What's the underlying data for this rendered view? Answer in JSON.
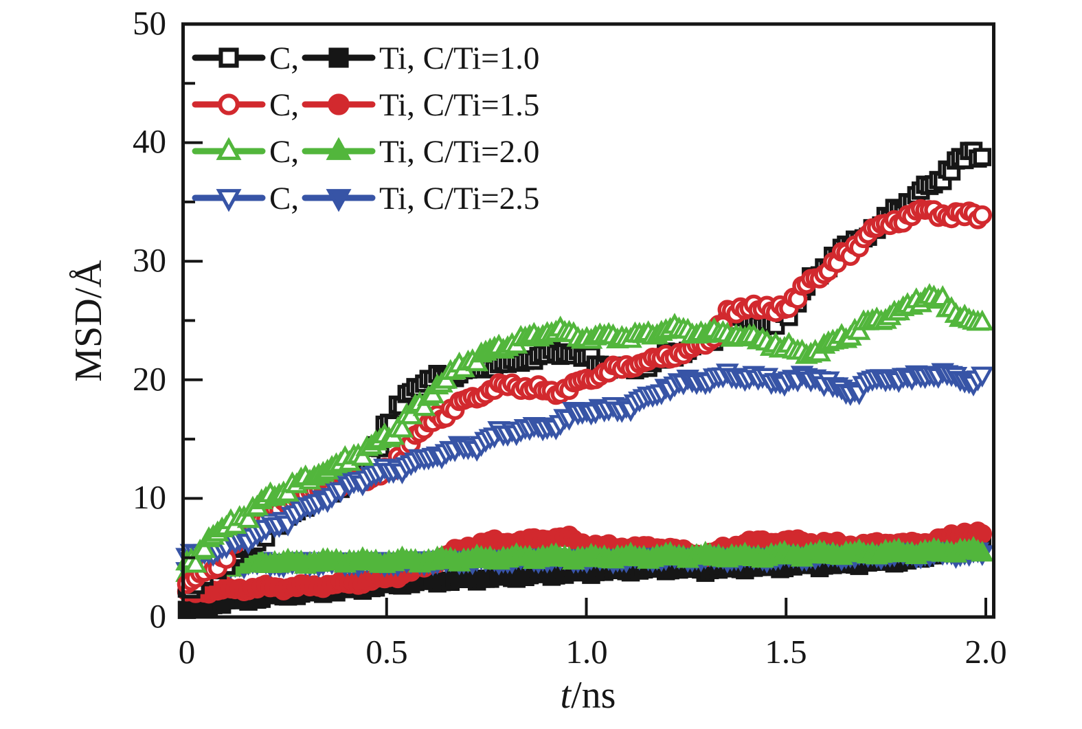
{
  "chart_data": {
    "type": "scatter",
    "title": "",
    "xlabel": "t/ns",
    "xlabel_italic": "t",
    "xlabel_rest": "/ns",
    "ylabel": "MSD/Å",
    "xlim": [
      0,
      2.0
    ],
    "ylim": [
      0,
      50
    ],
    "grid": false,
    "legend_position": "top-left-inside",
    "x_tick_values": [
      0,
      0.5,
      1.0,
      1.5,
      2.0
    ],
    "x_tick_labels": [
      "0",
      "0.5",
      "1.0",
      "1.5",
      "2.0"
    ],
    "y_tick_values": [
      0,
      10,
      20,
      30,
      40,
      50
    ],
    "y_tick_labels": [
      "0",
      "10",
      "20",
      "30",
      "40",
      "50"
    ],
    "y_minor_tick_values": [
      5,
      15,
      25,
      35,
      45
    ],
    "x": [
      0,
      0.05,
      0.1,
      0.15,
      0.2,
      0.25,
      0.3,
      0.35,
      0.4,
      0.45,
      0.5,
      0.55,
      0.6,
      0.65,
      0.7,
      0.75,
      0.8,
      0.85,
      0.9,
      0.95,
      1.0,
      1.05,
      1.1,
      1.15,
      1.2,
      1.25,
      1.3,
      1.35,
      1.4,
      1.45,
      1.5,
      1.55,
      1.6,
      1.65,
      1.7,
      1.75,
      1.8,
      1.85,
      1.9,
      1.95,
      2.0
    ],
    "series": [
      {
        "id": "C_1.0",
        "element": "C",
        "ratio": "1.0",
        "color": "#161616",
        "marker": "square",
        "fill": "open",
        "values": [
          2.6,
          4.0,
          5.1,
          6.2,
          7.5,
          8.7,
          9.8,
          10.8,
          11.8,
          13.4,
          16.6,
          19.2,
          20.0,
          20.4,
          20.8,
          21.2,
          21.4,
          21.8,
          22.2,
          22.4,
          21.6,
          21.0,
          20.9,
          21.3,
          22.2,
          22.6,
          23.4,
          24.8,
          25.4,
          24.3,
          26.3,
          28.2,
          30.2,
          31.4,
          32.4,
          33.8,
          35.2,
          36.4,
          37.8,
          39.2,
          38.7
        ]
      },
      {
        "id": "Ti_1.0",
        "element": "Ti",
        "ratio": "1.0",
        "color": "#161616",
        "marker": "square",
        "fill": "filled",
        "values": [
          0.6,
          1.0,
          1.3,
          1.5,
          1.7,
          1.9,
          2.0,
          2.2,
          2.3,
          2.5,
          2.7,
          2.9,
          3.0,
          3.1,
          3.2,
          3.3,
          3.4,
          3.5,
          3.6,
          3.7,
          3.8,
          3.9,
          4.0,
          4.0,
          4.1,
          4.1,
          4.0,
          4.1,
          4.2,
          4.2,
          4.3,
          4.4,
          4.4,
          4.5,
          4.6,
          4.7,
          4.8,
          5.0,
          6.2,
          6.9,
          6.4
        ]
      },
      {
        "id": "C_1.5",
        "element": "C",
        "ratio": "1.5",
        "color": "#d2292e",
        "marker": "circle",
        "fill": "open",
        "values": [
          3.0,
          4.2,
          5.8,
          7.5,
          8.8,
          9.9,
          10.5,
          11.0,
          11.4,
          11.8,
          12.4,
          14.8,
          16.4,
          17.6,
          18.4,
          19.2,
          19.6,
          19.3,
          18.9,
          19.4,
          20.2,
          20.8,
          21.2,
          21.6,
          22.1,
          22.4,
          23.6,
          25.6,
          26.4,
          25.6,
          26.6,
          28.3,
          29.6,
          30.8,
          32.6,
          33.2,
          33.9,
          34.4,
          33.6,
          34.2,
          33.5
        ]
      },
      {
        "id": "Ti_1.5",
        "element": "Ti",
        "ratio": "1.5",
        "color": "#d2292e",
        "marker": "circle",
        "fill": "filled",
        "values": [
          1.9,
          2.2,
          2.3,
          2.4,
          2.5,
          2.5,
          2.6,
          2.7,
          2.8,
          3.0,
          3.3,
          3.7,
          4.3,
          5.2,
          5.9,
          6.3,
          6.3,
          6.4,
          6.6,
          6.7,
          6.1,
          5.9,
          5.9,
          5.8,
          5.9,
          5.4,
          5.2,
          5.8,
          6.3,
          6.3,
          6.4,
          6.3,
          6.2,
          6.1,
          6.0,
          6.3,
          6.1,
          6.3,
          6.6,
          7.2,
          6.9
        ]
      },
      {
        "id": "C_2.0",
        "element": "C",
        "ratio": "2.0",
        "color": "#52b63c",
        "marker": "triangle-up",
        "fill": "open",
        "values": [
          4.5,
          6.8,
          7.8,
          8.9,
          10.2,
          10.8,
          11.8,
          12.5,
          13.4,
          14.3,
          15.4,
          16.9,
          18.8,
          20.6,
          21.6,
          22.4,
          23.0,
          23.5,
          24.1,
          23.8,
          23.4,
          23.7,
          23.5,
          23.8,
          24.3,
          24.0,
          23.9,
          23.8,
          23.5,
          23.1,
          22.4,
          22.2,
          23.0,
          23.9,
          24.8,
          25.4,
          26.3,
          27.1,
          25.9,
          25.0,
          24.2
        ]
      },
      {
        "id": "Ti_2.0",
        "element": "Ti",
        "ratio": "2.0",
        "color": "#52b63c",
        "marker": "triangle-up",
        "fill": "filled",
        "values": [
          3.6,
          4.1,
          4.3,
          4.5,
          4.6,
          4.5,
          4.6,
          4.6,
          4.7,
          4.6,
          4.6,
          4.7,
          4.7,
          4.8,
          4.8,
          4.9,
          4.9,
          5.0,
          5.0,
          5.0,
          4.9,
          5.0,
          5.0,
          5.0,
          5.1,
          5.1,
          5.1,
          5.1,
          5.0,
          5.1,
          5.2,
          5.2,
          5.3,
          5.3,
          5.3,
          5.4,
          5.4,
          5.4,
          5.5,
          5.5,
          5.5
        ]
      },
      {
        "id": "C_2.5",
        "element": "C",
        "ratio": "2.5",
        "color": "#3754a6",
        "marker": "triangle-down",
        "fill": "open",
        "values": [
          5.2,
          5.6,
          6.2,
          6.9,
          7.6,
          8.5,
          9.4,
          10.4,
          11.3,
          12.0,
          12.4,
          12.9,
          13.6,
          14.1,
          14.4,
          15.1,
          15.8,
          15.9,
          16.1,
          17.0,
          17.6,
          17.4,
          17.9,
          18.6,
          19.6,
          19.9,
          20.1,
          20.4,
          20.3,
          20.0,
          19.9,
          20.4,
          19.6,
          18.9,
          19.9,
          20.3,
          20.1,
          20.6,
          20.4,
          19.9,
          20.4
        ]
      },
      {
        "id": "Ti_2.5",
        "element": "Ti",
        "ratio": "2.5",
        "color": "#3754a6",
        "marker": "triangle-down",
        "fill": "filled",
        "values": [
          3.7,
          4.2,
          4.4,
          4.5,
          4.6,
          4.5,
          4.6,
          4.6,
          4.6,
          4.6,
          4.6,
          4.6,
          4.7,
          4.7,
          4.8,
          4.8,
          4.8,
          4.9,
          4.9,
          4.9,
          4.9,
          4.9,
          4.9,
          5.0,
          5.0,
          5.0,
          5.0,
          5.0,
          5.0,
          5.0,
          5.1,
          5.1,
          5.2,
          5.2,
          5.2,
          5.3,
          5.3,
          5.3,
          5.4,
          5.4,
          5.4
        ]
      }
    ],
    "legend": {
      "rows": [
        {
          "c_label": "C,",
          "ti_label": "Ti, C/Ti=1.0",
          "color": "#161616"
        },
        {
          "c_label": "C,",
          "ti_label": "Ti, C/Ti=1.5",
          "color": "#d2292e"
        },
        {
          "c_label": "C,",
          "ti_label": "Ti, C/Ti=2.0",
          "color": "#52b63c"
        },
        {
          "c_label": "C,",
          "ti_label": "Ti, C/Ti=2.5",
          "color": "#3754a6"
        }
      ]
    }
  }
}
